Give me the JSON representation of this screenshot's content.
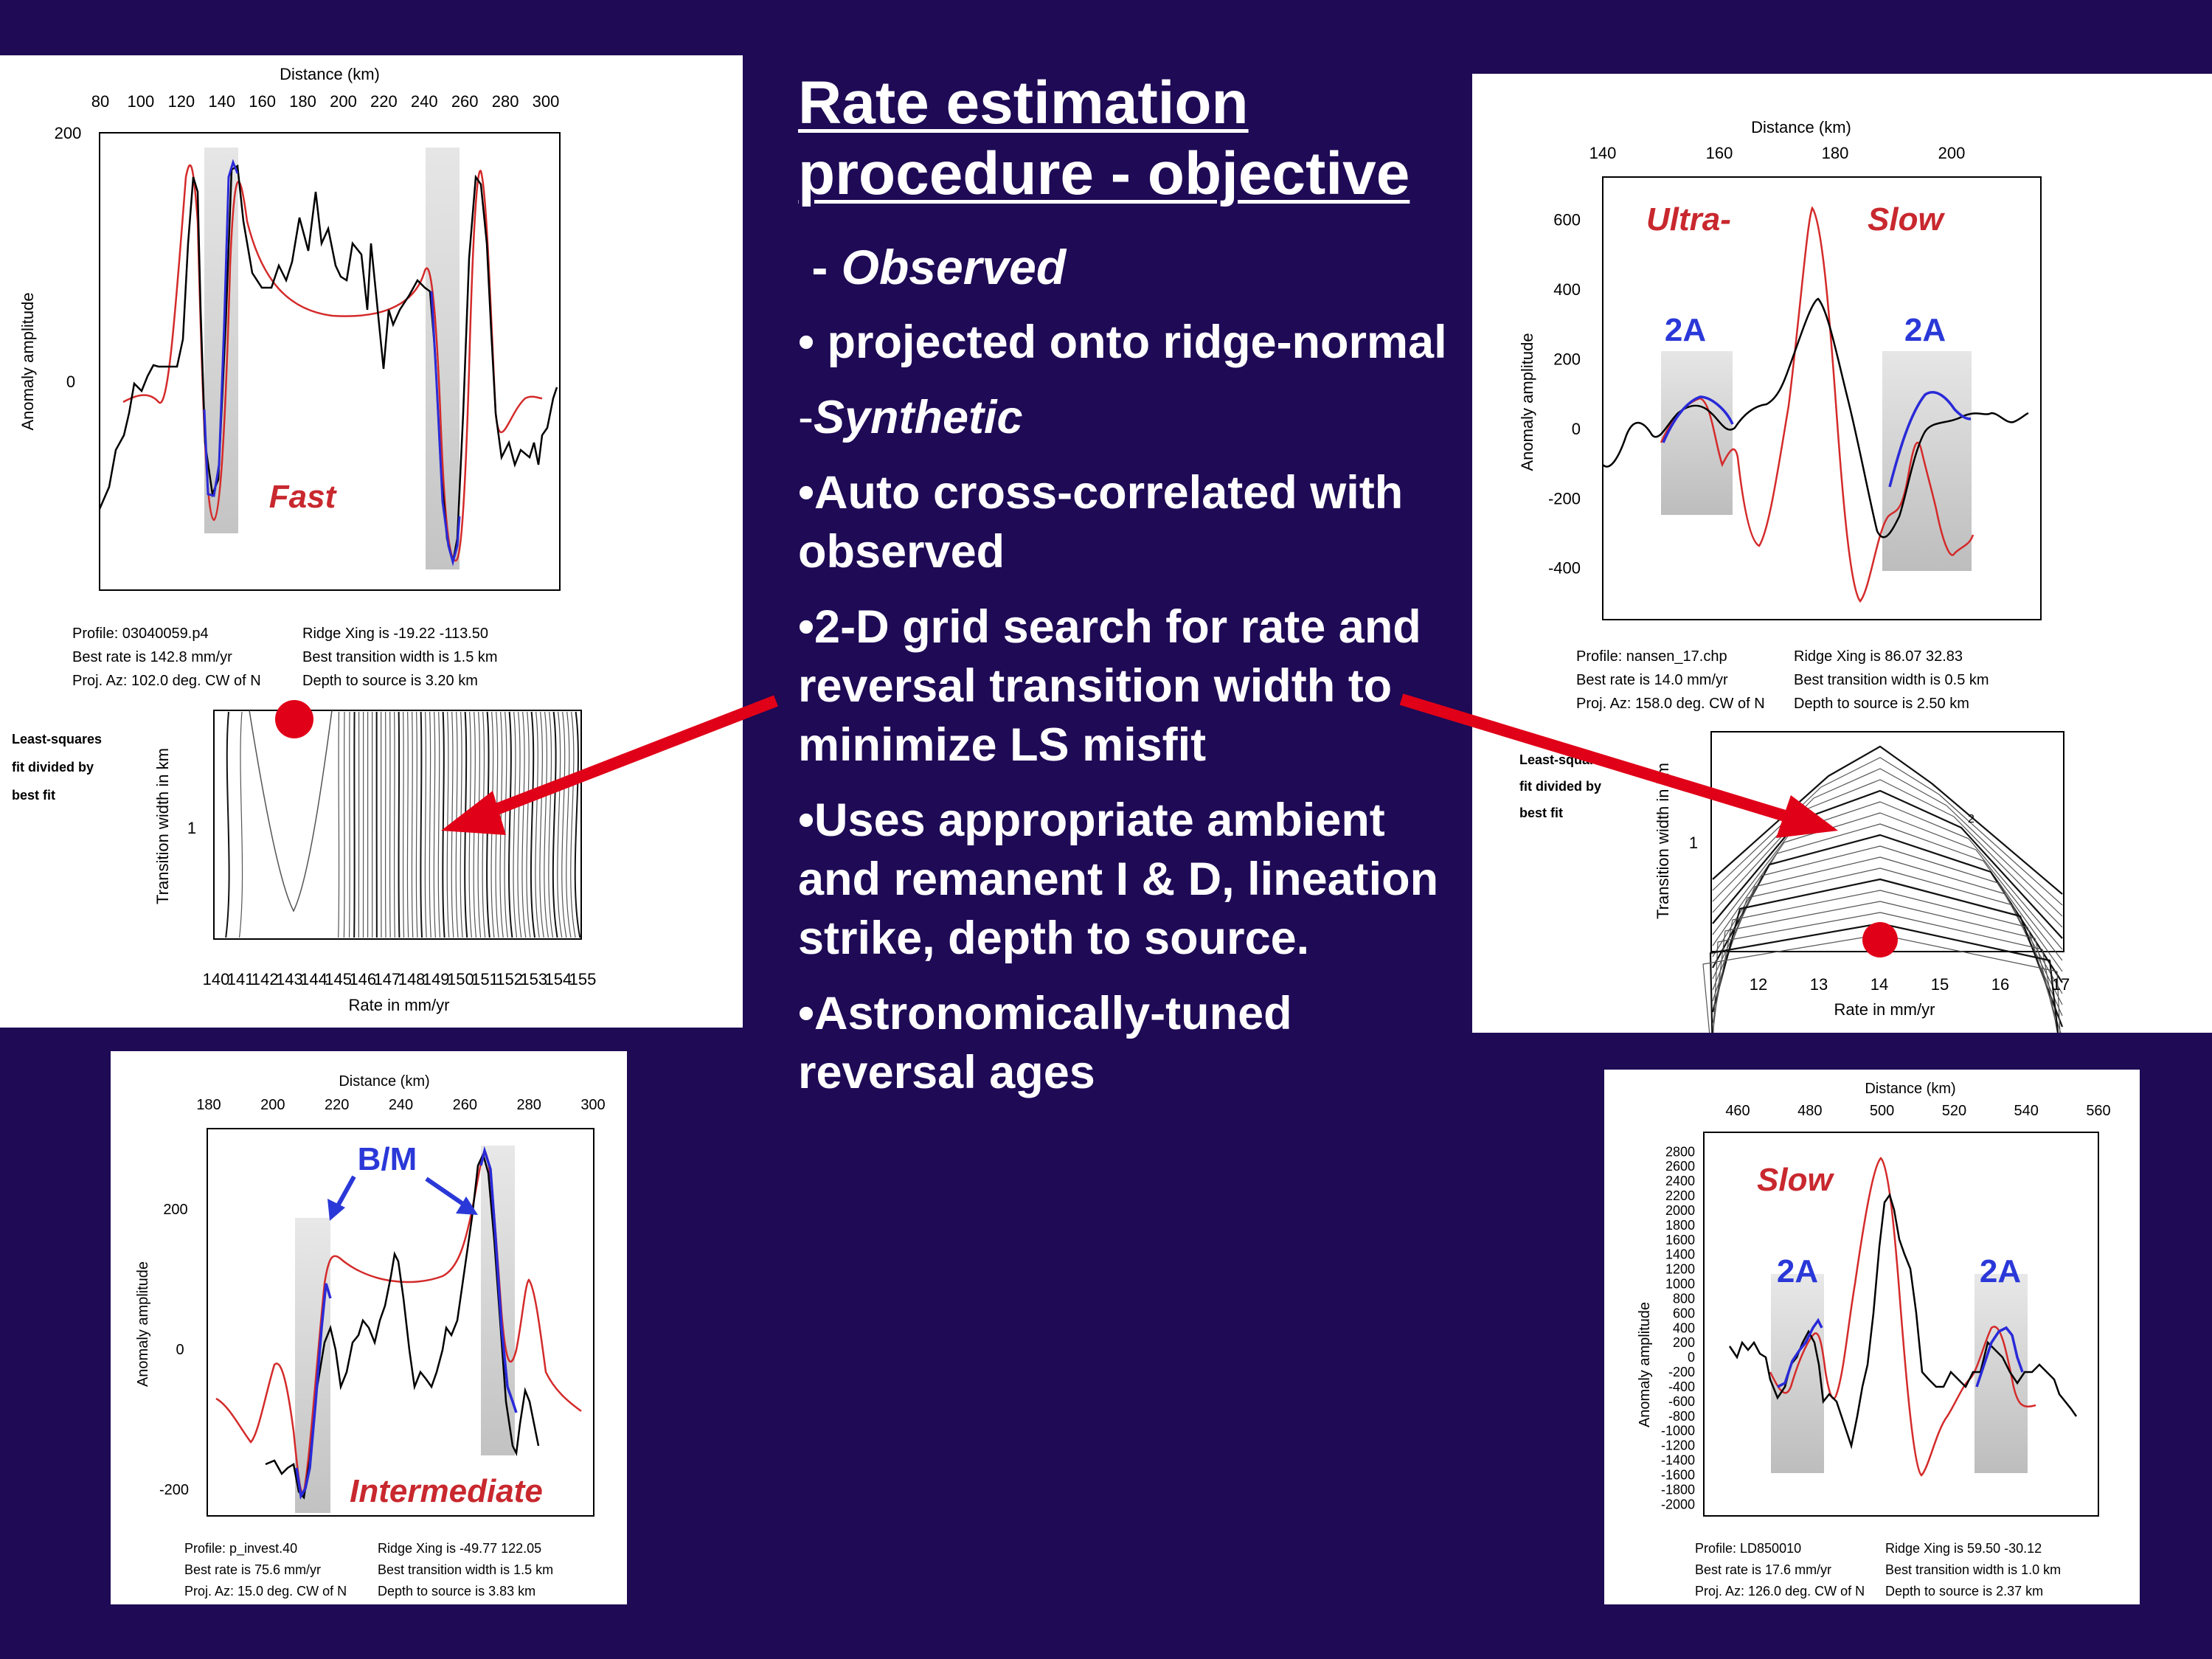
{
  "slide": {
    "title": "Rate estimation procedure - objective",
    "observed": {
      "prefix": " - ",
      "label": "Observed"
    },
    "bullet_projected": "• projected onto ridge-normal",
    "synthetic": {
      "prefix": "-",
      "label": "Synthetic"
    },
    "bullet_auto": "•Auto cross-correlated with observed",
    "bullet_grid": "•2-D grid search for rate and reversal transition width to minimize LS misfit",
    "bullet_ambient": "•Uses appropriate ambient and remanent I & D, lineation strike, depth to source.",
    "bullet_astro": "•Astronomically-tuned reversal ages"
  },
  "colors": {
    "background": "#1e0a55",
    "observed": "#000000",
    "synthetic": "#d42a2a",
    "fit": "#2a2ad8",
    "label_red": "#c8282e",
    "label_blue": "#2a38d8",
    "arrow": "#e00018",
    "window": "#d6d6d6"
  },
  "fast": {
    "xlabel": "Distance (km)",
    "xticks": [
      "80",
      "100",
      "120",
      "140",
      "160",
      "180",
      "200",
      "220",
      "240",
      "260",
      "280",
      "300"
    ],
    "ylabel": "Anomaly amplitude",
    "yticks": [
      "200",
      "0"
    ],
    "label": "Fast",
    "info": [
      "Profile: 03040059.p4",
      "Ridge Xing is -19.22 -113.50",
      "Best rate is 142.8 mm/yr",
      "Best transition width is 1.5 km",
      "Proj. Az: 102.0 deg. CW of N",
      "Depth to source is    3.20 km"
    ],
    "contour": {
      "side": [
        "Least-squares",
        "fit divided by",
        "best fit"
      ],
      "ylabel": "Transition width in km",
      "ytick": "1",
      "xlabel": "Rate in mm/yr",
      "xticks": [
        "140",
        "141",
        "142",
        "143",
        "144",
        "145",
        "146",
        "147",
        "148",
        "149",
        "150",
        "151",
        "152",
        "153",
        "154",
        "155"
      ]
    }
  },
  "ultra": {
    "xlabel": "Distance (km)",
    "xticks": [
      "140",
      "160",
      "180",
      "200"
    ],
    "ylabel": "Anomaly amplitude",
    "yticks": [
      "600",
      "400",
      "200",
      "0",
      "-200",
      "-400"
    ],
    "label_left": "Ultra-",
    "label_right": "Slow",
    "window_label_1": "2A",
    "window_label_2": "2A",
    "info": [
      "Profile: nansen_17.chp",
      "Ridge Xing is 86.07 32.83",
      "Best rate is 14.0 mm/yr",
      "Best transition width is 0.5 km",
      "Proj. Az: 158.0 deg. CW of N",
      "Depth to source is    2.50 km"
    ],
    "contour": {
      "side": [
        "Least-squares",
        "fit divided by",
        "best fit"
      ],
      "ylabel": "Transition width in km",
      "ytick": "1",
      "contour_label": "2",
      "xlabel": "Rate in mm/yr",
      "xticks": [
        "12",
        "13",
        "14",
        "15",
        "16",
        "17"
      ]
    }
  },
  "intermediate": {
    "xlabel": "Distance (km)",
    "xticks": [
      "180",
      "200",
      "220",
      "240",
      "260",
      "280",
      "300"
    ],
    "ylabel": "Anomaly amplitude",
    "yticks": [
      "200",
      "0",
      "-200"
    ],
    "label": "Intermediate",
    "bm_label": "B/M",
    "info": [
      "Profile: p_invest.40",
      "Ridge Xing is -49.77 122.05",
      "Best rate is 75.6 mm/yr",
      "Best transition width is 1.5 km",
      "Proj. Az: 15.0 deg. CW of N",
      "Depth to source is    3.83 km"
    ]
  },
  "slow": {
    "xlabel": "Distance (km)",
    "xticks": [
      "460",
      "480",
      "500",
      "520",
      "540",
      "560"
    ],
    "ylabel": "Anomaly amplitude",
    "yticks": [
      "2800",
      "2600",
      "2400",
      "2200",
      "2000",
      "1800",
      "1600",
      "1400",
      "1200",
      "1000",
      "800",
      "600",
      "400",
      "200",
      "0",
      "-200",
      "-400",
      "-600",
      "-800",
      "-1000",
      "-1200",
      "-1400",
      "-1600",
      "-1800",
      "-2000"
    ],
    "label": "Slow",
    "window_label_1": "2A",
    "window_label_2": "2A",
    "info": [
      "Profile: LD850010",
      "Ridge Xing is 59.50 -30.12",
      "Best rate is 17.6 mm/yr",
      "Best transition width is 1.0 km",
      "Proj. Az: 126.0 deg. CW of N",
      "Depth to source is    2.37 km"
    ]
  }
}
